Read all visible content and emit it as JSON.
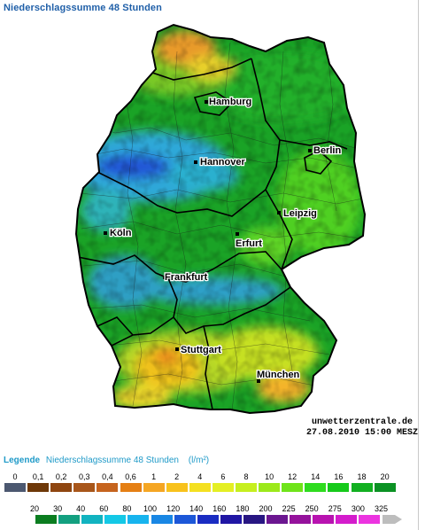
{
  "header": {
    "title": "Niederschlagssumme 48 Stunden"
  },
  "map": {
    "cities": [
      {
        "id": "hamburg",
        "name": "Hamburg"
      },
      {
        "id": "berlin",
        "name": "Berlin"
      },
      {
        "id": "hannover",
        "name": "Hannover"
      },
      {
        "id": "leipzig",
        "name": "Leipzig"
      },
      {
        "id": "erfurt",
        "name": "Erfurt"
      },
      {
        "id": "koeln",
        "name": "Köln"
      },
      {
        "id": "frankfurt",
        "name": "Frankfurt"
      },
      {
        "id": "stuttgart",
        "name": "Stuttgart"
      },
      {
        "id": "muenchen",
        "name": "München"
      }
    ],
    "credit_site": "unwetterzentrale.de",
    "credit_time": "27.08.2010 15:00 MESZ"
  },
  "legend": {
    "title": "Legende",
    "subtitle": "Niederschlagssumme 48 Stunden",
    "unit": "(l/m²)",
    "row1_ticks": [
      "0",
      "0,1",
      "0,2",
      "0,3",
      "0,4",
      "0,6",
      "1",
      "2",
      "4",
      "6",
      "8",
      "10",
      "12",
      "14",
      "16",
      "18",
      "20"
    ],
    "row1_colors": [
      "#4c5870",
      "#6e3808",
      "#8f4610",
      "#a8561a",
      "#c6641e",
      "#e57f14",
      "#f5a623",
      "#f8c21c",
      "#f4e021",
      "#e4ef24",
      "#c6ef1f",
      "#9ce91b",
      "#6fe41a",
      "#2fdc1f",
      "#16ca1b",
      "#12b021",
      "#0b9224"
    ],
    "row2_ticks": [
      "20",
      "30",
      "40",
      "60",
      "80",
      "100",
      "120",
      "140",
      "160",
      "180",
      "200",
      "225",
      "250",
      "275",
      "300",
      "325"
    ],
    "row2_colors": [
      "#0b7d20",
      "#13a080",
      "#11b3c0",
      "#14c8e6",
      "#17b4ee",
      "#1987e4",
      "#1c57d8",
      "#1a2cc2",
      "#2016a4",
      "#281682",
      "#6b1690",
      "#95129c",
      "#b813b0",
      "#d41ccc",
      "#ec34e0",
      "#bdbdbd"
    ]
  }
}
